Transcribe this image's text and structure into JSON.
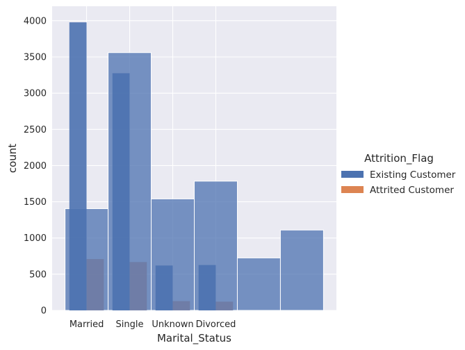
{
  "chart_data": {
    "type": "bar",
    "xlabel": "Marital_Status",
    "ylabel": "count",
    "ylim": [
      0,
      4200
    ],
    "yticks": [
      0,
      500,
      1000,
      1500,
      2000,
      2500,
      3000,
      3500,
      4000
    ],
    "categories": [
      "Married",
      "Single",
      "Unknown",
      "Divorced"
    ],
    "grid": true,
    "legend": {
      "title": "Attrition_Flag",
      "placement": "right",
      "entries": [
        {
          "name": "Existing Customer",
          "color": "#4c72b0"
        },
        {
          "name": "Attrited Customer",
          "color": "#dd8452"
        }
      ]
    },
    "bars": [
      {
        "x_from": -0.5,
        "x_to": 0.5,
        "value": 1405,
        "layer": "back"
      },
      {
        "x_from": 0.5,
        "x_to": 1.5,
        "value": 3560,
        "layer": "back"
      },
      {
        "x_from": 1.5,
        "x_to": 2.5,
        "value": 1540,
        "layer": "back"
      },
      {
        "x_from": 2.5,
        "x_to": 3.5,
        "value": 1785,
        "layer": "back"
      },
      {
        "x_from": 3.5,
        "x_to": 4.5,
        "value": 725,
        "layer": "back"
      },
      {
        "x_from": 4.5,
        "x_to": 5.5,
        "value": 1110,
        "layer": "back"
      },
      {
        "x_from": -0.4,
        "x_to": 0.0,
        "value": 3978,
        "layer": "front"
      },
      {
        "x_from": 0.0,
        "x_to": 0.4,
        "value": 709,
        "layer": "front"
      },
      {
        "x_from": 0.6,
        "x_to": 1.0,
        "value": 3275,
        "layer": "front"
      },
      {
        "x_from": 1.0,
        "x_to": 1.4,
        "value": 668,
        "layer": "front"
      },
      {
        "x_from": 1.6,
        "x_to": 2.0,
        "value": 620,
        "layer": "front"
      },
      {
        "x_from": 2.0,
        "x_to": 2.4,
        "value": 129,
        "layer": "front"
      },
      {
        "x_from": 2.6,
        "x_to": 3.0,
        "value": 627,
        "layer": "front"
      },
      {
        "x_from": 3.0,
        "x_to": 3.4,
        "value": 121,
        "layer": "front"
      }
    ],
    "colors": {
      "background": "#eaeaf2",
      "grid": "#ffffff",
      "back_fill": "#4c72b0",
      "front_fill": "#4c72b0",
      "front_minor_fill": "#6f7aa2"
    }
  }
}
